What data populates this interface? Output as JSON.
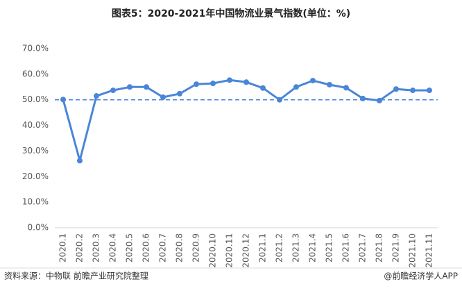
{
  "chart_data": {
    "type": "line",
    "title": "图表5：2020-2021年中国物流业景气指数(单位：%)",
    "source": "资料来源：中物联 前瞻产业研究院整理",
    "credit": "@前瞻经济学人APP",
    "categories": [
      "2020.1",
      "2020.2",
      "2020.3",
      "2020.4",
      "2020.5",
      "2020.6",
      "2020.7",
      "2020.8",
      "2020.9",
      "2020.10",
      "2020.11",
      "2020.12",
      "2021.1",
      "2021.2",
      "2021.3",
      "2021.4",
      "2021.5",
      "2021.6",
      "2021.7",
      "2021.8",
      "2021.9",
      "2021.10",
      "2021.11"
    ],
    "series": [
      {
        "name": "中国物流业景气指数",
        "color": "#4a86d8",
        "values": [
          50.1,
          26.2,
          51.5,
          53.7,
          55.0,
          55.0,
          51.0,
          52.4,
          56.1,
          56.4,
          57.7,
          56.9,
          54.6,
          50.0,
          55.0,
          57.5,
          55.9,
          54.7,
          50.5,
          49.7,
          54.2,
          53.7,
          53.7
        ]
      }
    ],
    "reference_line": 50,
    "ylim": [
      0,
      70
    ],
    "yticks": [
      {
        "value": 0,
        "label": "0.0%"
      },
      {
        "value": 10,
        "label": "10.0%"
      },
      {
        "value": 20,
        "label": "20.0%"
      },
      {
        "value": 30,
        "label": "30.0%"
      },
      {
        "value": 40,
        "label": "40.0%"
      },
      {
        "value": 50,
        "label": "50.0%"
      },
      {
        "value": 60,
        "label": "60.0%"
      },
      {
        "value": 70,
        "label": "70.0%"
      }
    ]
  }
}
